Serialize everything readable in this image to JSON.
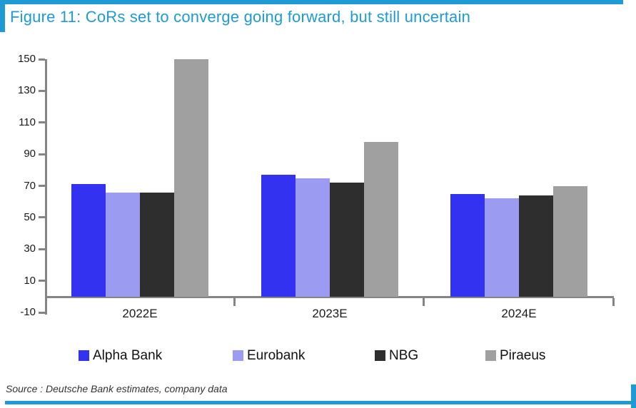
{
  "figure": {
    "title": "Figure 11: CoRs set to converge going forward, but still uncertain",
    "source": "Source : Deutsche Bank estimates, company data",
    "accent_color": "#1E9BD4",
    "axis_color": "#848484",
    "label_color": "#1A1A1A"
  },
  "chart_data": {
    "type": "bar",
    "title": "Figure 11: CoRs set to converge going forward, but still uncertain",
    "categories": [
      "2022E",
      "2023E",
      "2024E"
    ],
    "series": [
      {
        "name": "Alpha Bank",
        "color": "#3232F0",
        "values": [
          71,
          77,
          65
        ]
      },
      {
        "name": "Eurobank",
        "color": "#9B9BF2",
        "values": [
          66,
          75,
          62
        ]
      },
      {
        "name": "NBG",
        "color": "#2E2E2E",
        "values": [
          66,
          72,
          64
        ]
      },
      {
        "name": "Piraeus",
        "color": "#A0A0A0",
        "values": [
          150,
          98,
          70
        ]
      }
    ],
    "xlabel": "",
    "ylabel": "",
    "ylim": [
      -10,
      150
    ],
    "yticks": [
      150,
      130,
      110,
      90,
      70,
      50,
      30,
      10,
      -10
    ],
    "bar_baseline": 0,
    "grid": false,
    "legend_position": "bottom"
  }
}
